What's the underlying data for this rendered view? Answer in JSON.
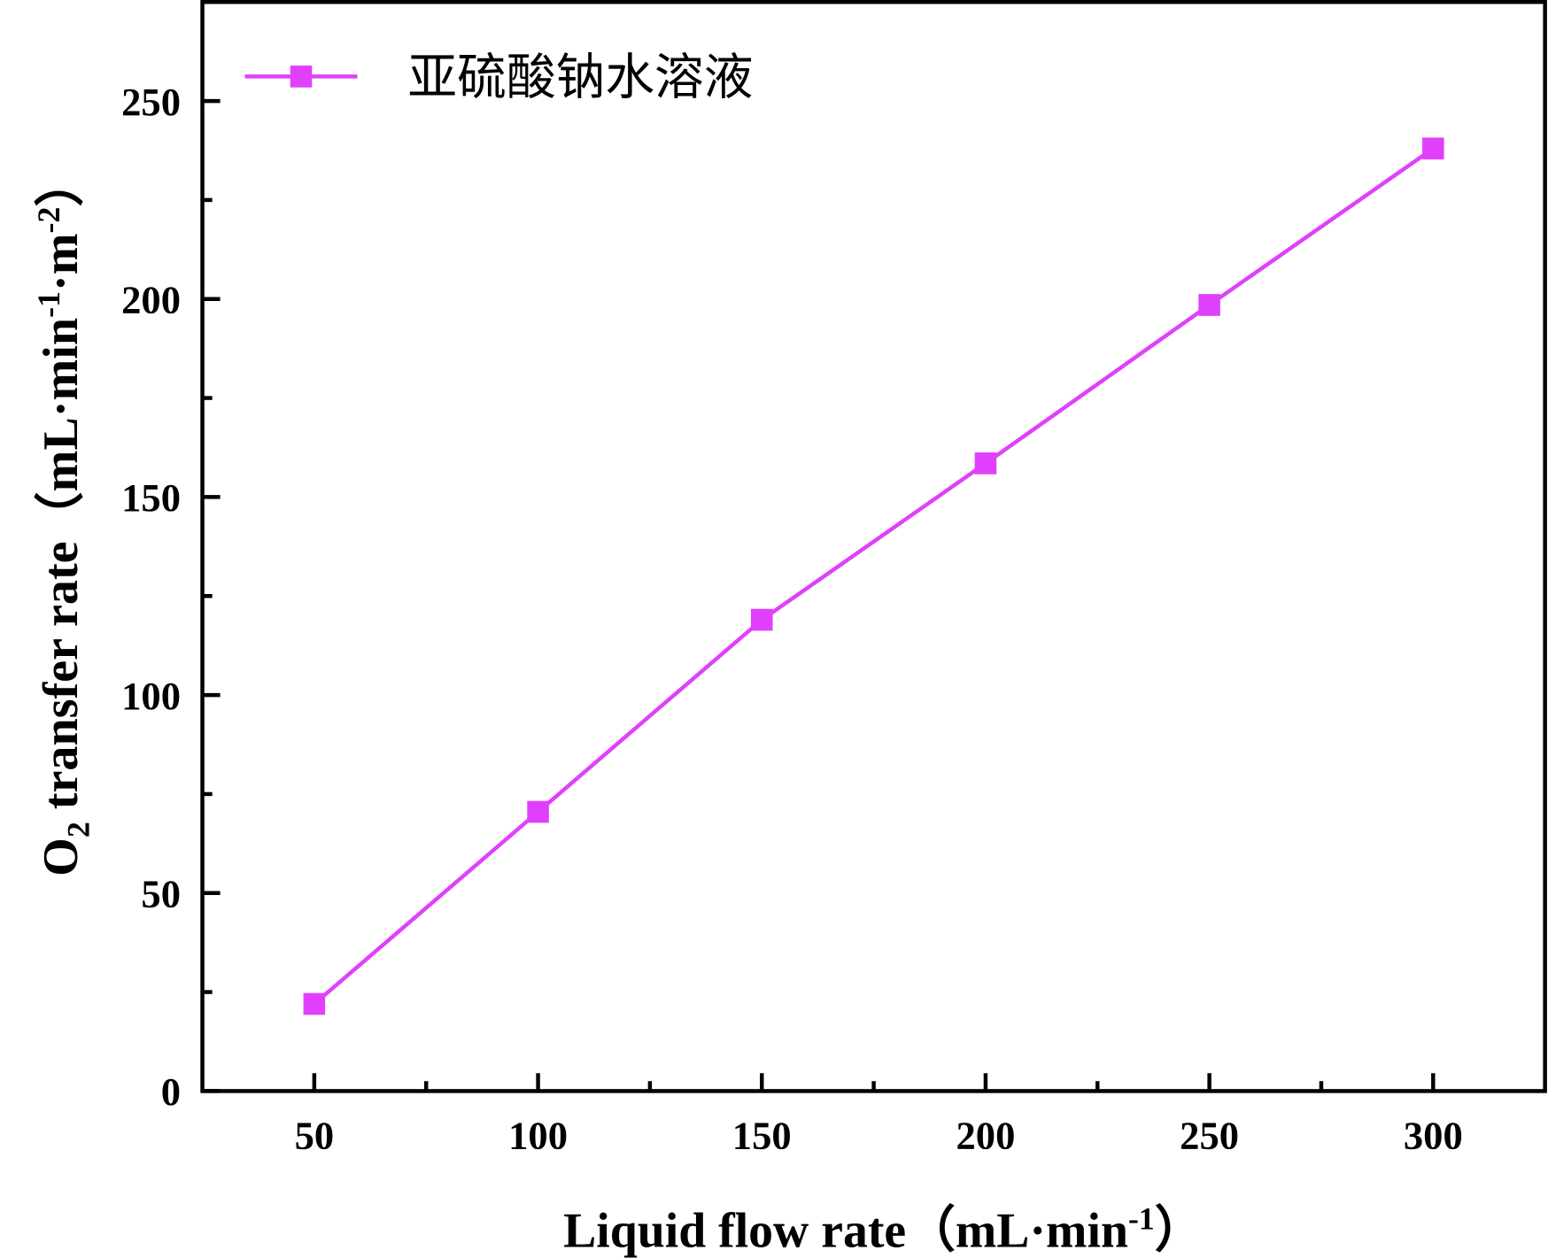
{
  "chart_data": {
    "type": "line",
    "x_label": [
      "Liquid flow rate（mL·min",
      "-1",
      "）"
    ],
    "y_label": [
      "O",
      "2",
      " transfer rate（mL·min",
      "-1",
      "·m",
      "-2",
      "）"
    ],
    "x": [
      50,
      100,
      150,
      200,
      250,
      300
    ],
    "series": [
      {
        "name": "亚硫酸钠水溶液",
        "color": "#e040fb",
        "values": [
          22,
          70.5,
          119,
          158.5,
          198.5,
          238
        ]
      }
    ],
    "xlim": [
      25,
      325
    ],
    "xticks": [
      50,
      100,
      150,
      200,
      250,
      300
    ],
    "ylim": [
      0,
      275
    ],
    "yticks": [
      0,
      50,
      100,
      150,
      200,
      250
    ],
    "legend": "top-left",
    "grid": false
  }
}
